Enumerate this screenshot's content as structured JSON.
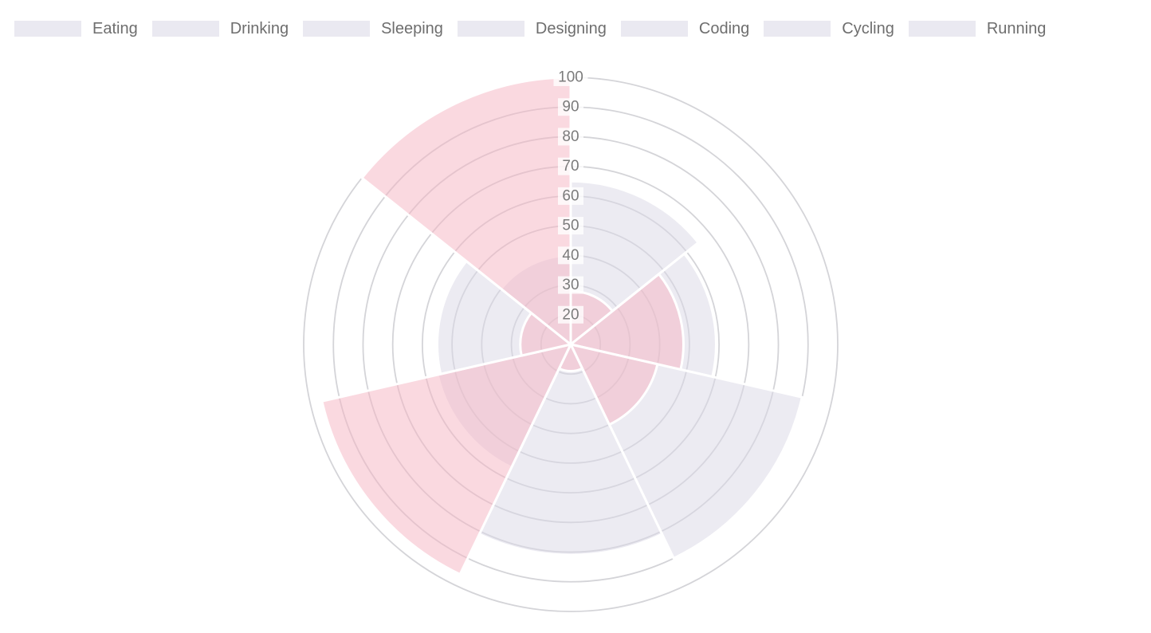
{
  "chart_data": {
    "type": "polarArea",
    "categories": [
      "Eating",
      "Drinking",
      "Sleeping",
      "Designing",
      "Coding",
      "Cycling",
      "Running"
    ],
    "series": [
      {
        "id": "gray-series",
        "fill": "rgba(217,215,229,0.5)",
        "border_color": "#ffffff",
        "values": [
          65,
          59,
          90,
          81,
          56,
          55,
          40
        ]
      },
      {
        "id": "pink-series",
        "fill": "rgba(245,179,193,0.5)",
        "border_color": "#ffffff",
        "values": [
          28,
          48,
          40,
          19,
          96,
          27,
          100
        ]
      }
    ],
    "scale": {
      "min": 10,
      "max": 100,
      "step": 10,
      "ticks": [
        20,
        30,
        40,
        50,
        60,
        70,
        80,
        90,
        100
      ],
      "tick_color": "#7b7b7b",
      "tick_backdrop": "rgba(255,255,255,0.78)"
    },
    "grid": {
      "show": true,
      "color": "#d4d4d8"
    },
    "layout_hints": {
      "start": "top",
      "direction": "clockwise",
      "legend_position": "top",
      "angle_lines": false
    }
  },
  "legend": {
    "swatch_color": "rgba(217,215,229,0.55)",
    "text_color": "#6e6e6e"
  }
}
